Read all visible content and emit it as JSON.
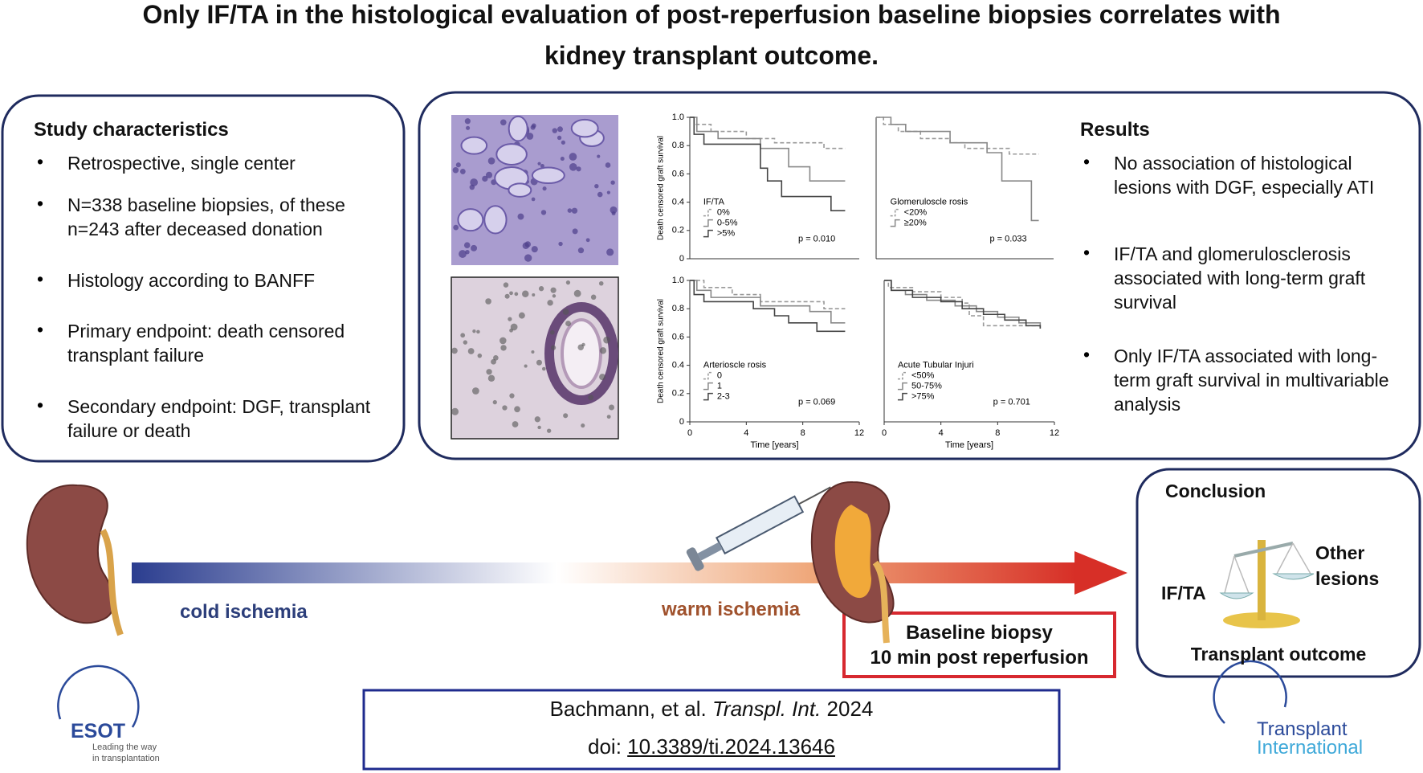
{
  "title": [
    "Only IF/TA in the histological evaluation of post-reperfusion baseline biopsies correlates with",
    "kidney transplant outcome."
  ],
  "study": {
    "heading": "Study characteristics",
    "items": [
      "Retrospective, single center",
      "N=338 baseline biopsies, of these n=243 after deceased donation",
      "Histology according to BANFF",
      "Primary endpoint: death censored transplant failure",
      "Secondary endpoint: DGF, transplant failure or death"
    ]
  },
  "results": {
    "heading": "Results",
    "items": [
      "No association of histological lesions with DGF, especially ATI",
      "IF/TA and glomerulosclerosis associated with long-term graft survival",
      "Only IF/TA associated with long-term graft survival in multivariable analysis"
    ]
  },
  "chart_data": [
    {
      "type": "line",
      "legend_title": "IF/TA",
      "p_value": "p = 0.010",
      "ylabel": "Death censored graft survival",
      "xlim": [
        0,
        12
      ],
      "ylim": [
        0,
        1
      ],
      "yticks": [
        0,
        0.2,
        0.4,
        0.6,
        0.8,
        {
          "value": 1,
          "label": "1.0"
        }
      ],
      "series": [
        {
          "name": "0%",
          "color": "#999999",
          "dash": true,
          "x": [
            0,
            0.3,
            1.5,
            4,
            6,
            9.5,
            11
          ],
          "values": [
            1,
            0.95,
            0.9,
            0.85,
            0.82,
            0.78,
            0.78
          ]
        },
        {
          "name": "0-5%",
          "color": "#888888",
          "dash": false,
          "x": [
            0,
            0.5,
            2,
            5,
            7,
            8.5,
            11
          ],
          "values": [
            1,
            0.9,
            0.85,
            0.78,
            0.65,
            0.55,
            0.55
          ]
        },
        {
          "name": ">5%",
          "color": "#444444",
          "dash": false,
          "x": [
            0,
            0.3,
            1,
            5,
            5.5,
            6.5,
            10,
            11
          ],
          "values": [
            1,
            0.88,
            0.81,
            0.64,
            0.55,
            0.44,
            0.34,
            0.34
          ]
        }
      ]
    },
    {
      "type": "line",
      "legend_title": "Glomeruloscle rosis",
      "p_value": "p = 0.033",
      "xlim": [
        0,
        12
      ],
      "ylim": [
        0,
        1
      ],
      "series": [
        {
          "name": "<20%",
          "color": "#999999",
          "dash": true,
          "x": [
            0,
            0.5,
            1.5,
            3,
            5,
            6,
            9,
            11
          ],
          "values": [
            1,
            0.95,
            0.9,
            0.85,
            0.82,
            0.78,
            0.74,
            0.74
          ]
        },
        {
          "name": "≥20%",
          "color": "#888888",
          "dash": false,
          "x": [
            0,
            1,
            2,
            5,
            7.5,
            8.5,
            10.5,
            11
          ],
          "values": [
            1,
            0.95,
            0.9,
            0.82,
            0.75,
            0.55,
            0.27,
            0.27
          ]
        }
      ]
    },
    {
      "type": "line",
      "legend_title": "Arterioscle rosis",
      "p_value": "p = 0.069",
      "ylabel": "Death censored graft survival",
      "xlabel": "Time [years]",
      "xlim": [
        0,
        12
      ],
      "xticks": [
        0,
        4,
        8,
        12
      ],
      "ylim": [
        0,
        1
      ],
      "yticks": [
        0,
        0.2,
        0.4,
        0.6,
        0.8,
        {
          "value": 1,
          "label": "1.0"
        }
      ],
      "series": [
        {
          "name": "0",
          "color": "#999999",
          "dash": true,
          "x": [
            0,
            1,
            3,
            5,
            9.5,
            11
          ],
          "values": [
            1,
            0.95,
            0.9,
            0.85,
            0.8,
            0.8
          ]
        },
        {
          "name": "1",
          "color": "#888888",
          "dash": false,
          "x": [
            0,
            0.5,
            1.5,
            5,
            8.5,
            10,
            11
          ],
          "values": [
            1,
            0.93,
            0.88,
            0.82,
            0.78,
            0.7,
            0.7
          ]
        },
        {
          "name": "2-3",
          "color": "#444444",
          "dash": false,
          "x": [
            0,
            0.3,
            1,
            4.5,
            6,
            7,
            9,
            11
          ],
          "values": [
            1,
            0.9,
            0.85,
            0.8,
            0.75,
            0.7,
            0.64,
            0.64
          ]
        }
      ]
    },
    {
      "type": "line",
      "legend_title": "Acute Tubular Injuri",
      "p_value": "p = 0.701",
      "xlabel": "Time [years]",
      "xlim": [
        0,
        12
      ],
      "xticks": [
        0,
        4,
        8,
        12
      ],
      "ylim": [
        0,
        1
      ],
      "series": [
        {
          "name": "<50%",
          "color": "#999999",
          "dash": true,
          "x": [
            0,
            0.3,
            2,
            4,
            5.5,
            6,
            7,
            11
          ],
          "values": [
            1,
            0.95,
            0.92,
            0.88,
            0.84,
            0.75,
            0.68,
            0.68
          ]
        },
        {
          "name": "50-75%",
          "color": "#888888",
          "dash": false,
          "x": [
            0,
            0.5,
            1.5,
            3,
            5,
            6.5,
            8,
            9.5,
            11
          ],
          "values": [
            1,
            0.93,
            0.9,
            0.86,
            0.82,
            0.78,
            0.74,
            0.7,
            0.66
          ]
        },
        {
          "name": ">75%",
          "color": "#444444",
          "dash": false,
          "x": [
            0,
            0.5,
            2,
            4,
            5.5,
            7,
            8.5,
            10,
            11
          ],
          "values": [
            1,
            0.93,
            0.88,
            0.85,
            0.8,
            0.76,
            0.72,
            0.68,
            0.66
          ]
        }
      ]
    }
  ],
  "timeline": {
    "cold": "cold ischemia",
    "warm": "warm ischemia",
    "biopsy": [
      "Baseline biopsy",
      "10 min post reperfusion"
    ]
  },
  "conclusion": {
    "heading": "Conclusion",
    "left": "IF/TA",
    "right": "Other lesions",
    "bottom": "Transplant outcome"
  },
  "citation": {
    "authors": "Bachmann, et al.",
    "journal": "Transpl. Int.",
    "year": "2024",
    "doi_prefix": "doi:",
    "doi": "10.3389/ti.2024.13646"
  },
  "logos": {
    "esot": "ESOT",
    "esot_tagline": [
      "Leading the way",
      "in transplantation"
    ],
    "journal": [
      "Transplant",
      "International"
    ]
  }
}
